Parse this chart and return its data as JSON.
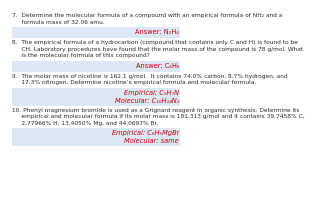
{
  "bg_color": "#ffffff",
  "answer_color": "#cc0000",
  "text_color": "#2a2a2a",
  "box_color": "#dce8f5",
  "q7_line1": "7.  Determine the molecular formula of a compound with an empirical formula of NH₂ and a",
  "q7_line2": "     formula mass of 32.06 amu.",
  "q7_answer": "Answer: N₂H₄",
  "q8_line1": "8.  The empirical formula of a hydrocarbon (compound that contains only C and H) is found to be",
  "q8_line2": "     CH. Laboratory procedures have found that the molar mass of the compound is 78 g/mol. What",
  "q8_line3": "     is the molecular formula of this compound?",
  "q8_answer": "Answer: C₆H₆",
  "q9_line1": "9.  The molar mass of nicotine is 162.1 g/mol.  It contains 74.0% carbon, 8.7% hydrogen, and",
  "q9_line2": "     17.3% nitrogen. Determine nicotine’s empirical formula and molecular formula.",
  "q9_empirical": "Empirical: C₅H₇N",
  "q9_molecular": "Molecular: C₁₀H₁₄N₂",
  "q10_line1": "10. Phenyl magnesium bromide is used as a Grignard reagent in organic synthesis. Determine its",
  "q10_line2": "     empirical and molecular formula if its molar mass is 181.313 g/mol and it contains 39.7458% C,",
  "q10_line3": "     2.77966% H, 13.4050% Mg, and 44.0697% Br.",
  "q10_empirical": "Empirical: C₆H₅MgBr",
  "q10_molecular": "Molecular: same"
}
